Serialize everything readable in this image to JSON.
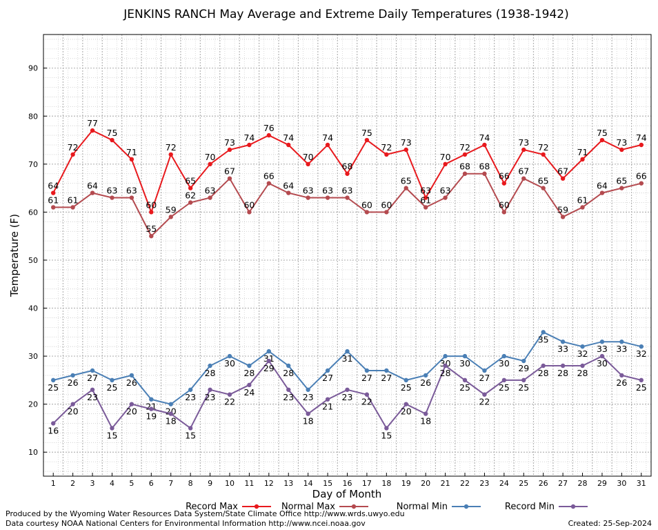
{
  "chart_data": {
    "type": "line",
    "title": "JENKINS RANCH May Average and Extreme Daily Temperatures (1938-1942)",
    "xlabel": "Day of Month",
    "ylabel": "Temperature (F)",
    "x": [
      1,
      2,
      3,
      4,
      5,
      6,
      7,
      8,
      9,
      10,
      11,
      12,
      13,
      14,
      15,
      16,
      17,
      18,
      19,
      20,
      21,
      22,
      23,
      24,
      25,
      26,
      27,
      28,
      29,
      30,
      31
    ],
    "xlim": [
      0.5,
      31.5
    ],
    "ylim": [
      5,
      97
    ],
    "yticks": [
      10,
      20,
      30,
      40,
      50,
      60,
      70,
      80,
      90
    ],
    "grid": true,
    "legend_position": "bottom",
    "series": [
      {
        "name": "Record Max",
        "color": "#e8191d",
        "label_pos": "above",
        "values": [
          64,
          72,
          77,
          75,
          71,
          60,
          72,
          65,
          70,
          73,
          74,
          76,
          74,
          70,
          74,
          68,
          75,
          72,
          73,
          63,
          70,
          72,
          74,
          66,
          73,
          72,
          67,
          71,
          75,
          73,
          74
        ]
      },
      {
        "name": "Normal Max",
        "color": "#b44a4f",
        "label_pos": "above",
        "values": [
          61,
          61,
          64,
          63,
          63,
          55,
          59,
          62,
          63,
          67,
          60,
          66,
          64,
          63,
          63,
          63,
          60,
          60,
          65,
          61,
          63,
          68,
          68,
          60,
          67,
          65,
          59,
          61,
          64,
          65,
          66
        ]
      },
      {
        "name": "Normal Min",
        "color": "#4a7fb5",
        "label_pos": "below",
        "values": [
          25,
          26,
          27,
          25,
          26,
          21,
          20,
          23,
          28,
          30,
          28,
          31,
          28,
          23,
          27,
          31,
          27,
          27,
          25,
          26,
          30,
          30,
          27,
          30,
          29,
          35,
          33,
          32,
          33,
          33,
          32
        ]
      },
      {
        "name": "Record Min",
        "color": "#7a5a99",
        "label_pos": "below",
        "values": [
          16,
          20,
          23,
          15,
          20,
          19,
          18,
          15,
          23,
          22,
          24,
          29,
          23,
          18,
          21,
          23,
          22,
          15,
          20,
          18,
          28,
          25,
          22,
          25,
          25,
          28,
          28,
          28,
          30,
          26,
          25
        ]
      }
    ]
  },
  "footer": {
    "line1": "Produced by the Wyoming Water Resources Data System/State Climate Office http://www.wrds.uwyo.edu",
    "line2": "Data courtesy NOAA National Centers for Environmental Information http://www.ncei.noaa.gov",
    "created": "Created:  25-Sep-2024"
  }
}
